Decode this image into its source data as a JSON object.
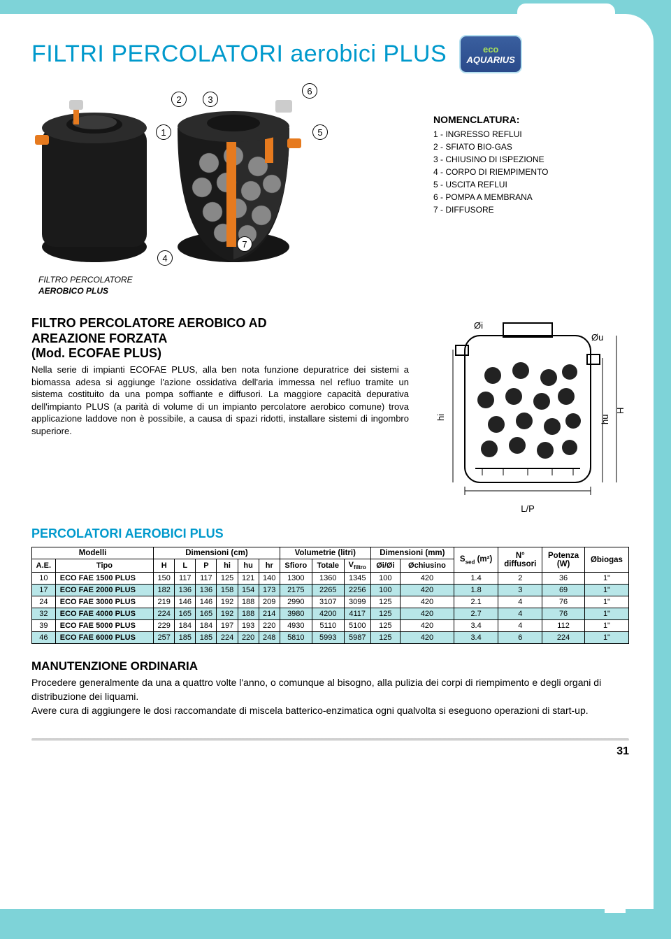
{
  "page": {
    "title": "FILTRI PERCOLATORI aerobici PLUS",
    "logo": {
      "line1": "eco",
      "line2": "AQUARIUS"
    },
    "pageNumber": "31"
  },
  "callouts": {
    "c1": "1",
    "c2": "2",
    "c3": "3",
    "c4": "4",
    "c5": "5",
    "c6": "6",
    "c7": "7"
  },
  "nomenclature": {
    "heading": "NOMENCLATURA:",
    "items": [
      "1 - INGRESSO REFLUI",
      "2 - SFIATO BIO-GAS",
      "3 - CHIUSINO DI ISPEZIONE",
      "4 - CORPO DI RIEMPIMENTO",
      "5 - USCITA REFLUI",
      "6 - POMPA A MEMBRANA",
      "7 - DIFFUSORE"
    ]
  },
  "caption": {
    "line1": "FILTRO PERCOLATORE",
    "line2": "AEROBICO PLUS"
  },
  "section1": {
    "heading_l1": "FILTRO PERCOLATORE AEROBICO AD",
    "heading_l2": "AREAZIONE FORZATA",
    "heading_l3": "(Mod. ECOFAE PLUS)",
    "body": "Nella serie di impianti ECOFAE PLUS, alla ben nota funzione depuratrice dei sistemi a biomassa adesa si aggiunge l'azione ossidativa dell'aria immessa nel refluo tramite un sistema costituito da una pompa soffiante e diffusori. La maggiore capacità depurativa dell'impianto PLUS (a parità di volume di un impianto percolatore aerobico comune) trova applicazione laddove non è possibile, a causa di spazi ridotti, installare sistemi di ingombro superiore."
  },
  "schematic": {
    "labels": {
      "oi": "Øi",
      "ou": "Øu",
      "hi": "hi",
      "hu": "hu",
      "H": "H",
      "LP": "L/P"
    }
  },
  "tableSection": {
    "title": "PERCOLATORI AEROBICI PLUS",
    "groupHeaders": {
      "modelli": "Modelli",
      "dimensioni": "Dimensioni (cm)",
      "volumetrie": "Volumetrie (litri)",
      "dim_mm": "Dimensioni (mm)"
    },
    "columns": [
      "A.E.",
      "Tipo",
      "H",
      "L",
      "P",
      "hi",
      "hu",
      "hr",
      "Sfioro",
      "Totale",
      "V",
      "Øi/Øi",
      "Øchiusino",
      "S",
      "N°",
      "Potenza",
      "Øbiogas"
    ],
    "col_sub": {
      "v": "filtro",
      "s": "sed",
      "s_unit": "(m²)",
      "n2": "diffusori",
      "pot": "(W)"
    },
    "rows": [
      {
        "ae": "10",
        "tipo": "ECO FAE 1500 PLUS",
        "H": "150",
        "L": "117",
        "P": "117",
        "hi": "125",
        "hu": "121",
        "hr": "140",
        "sfioro": "1300",
        "totale": "1360",
        "vfiltro": "1345",
        "oi": "100",
        "ochi": "420",
        "ssed": "1.4",
        "ndiff": "2",
        "pot": "36",
        "obio": "1\""
      },
      {
        "ae": "17",
        "tipo": "ECO FAE 2000 PLUS",
        "H": "182",
        "L": "136",
        "P": "136",
        "hi": "158",
        "hu": "154",
        "hr": "173",
        "sfioro": "2175",
        "totale": "2265",
        "vfiltro": "2256",
        "oi": "100",
        "ochi": "420",
        "ssed": "1.8",
        "ndiff": "3",
        "pot": "69",
        "obio": "1\""
      },
      {
        "ae": "24",
        "tipo": "ECO FAE 3000 PLUS",
        "H": "219",
        "L": "146",
        "P": "146",
        "hi": "192",
        "hu": "188",
        "hr": "209",
        "sfioro": "2990",
        "totale": "3107",
        "vfiltro": "3099",
        "oi": "125",
        "ochi": "420",
        "ssed": "2.1",
        "ndiff": "4",
        "pot": "76",
        "obio": "1\""
      },
      {
        "ae": "32",
        "tipo": "ECO FAE 4000 PLUS",
        "H": "224",
        "L": "165",
        "P": "165",
        "hi": "192",
        "hu": "188",
        "hr": "214",
        "sfioro": "3980",
        "totale": "4200",
        "vfiltro": "4117",
        "oi": "125",
        "ochi": "420",
        "ssed": "2.7",
        "ndiff": "4",
        "pot": "76",
        "obio": "1\""
      },
      {
        "ae": "39",
        "tipo": "ECO FAE 5000 PLUS",
        "H": "229",
        "L": "184",
        "P": "184",
        "hi": "197",
        "hu": "193",
        "hr": "220",
        "sfioro": "4930",
        "totale": "5110",
        "vfiltro": "5100",
        "oi": "125",
        "ochi": "420",
        "ssed": "3.4",
        "ndiff": "4",
        "pot": "112",
        "obio": "1\""
      },
      {
        "ae": "46",
        "tipo": "ECO FAE 6000 PLUS",
        "H": "257",
        "L": "185",
        "P": "185",
        "hi": "224",
        "hu": "220",
        "hr": "248",
        "sfioro": "5810",
        "totale": "5993",
        "vfiltro": "5987",
        "oi": "125",
        "ochi": "420",
        "ssed": "3.4",
        "ndiff": "6",
        "pot": "224",
        "obio": "1\""
      }
    ],
    "stripe_color": "#b8e6e8"
  },
  "maintenance": {
    "heading": "MANUTENZIONE ORDINARIA",
    "p1": "Procedere generalmente da una a quattro volte l'anno, o comunque al bisogno, alla pulizia dei corpi di riempimento e degli organi di distribuzione dei liquami.",
    "p2": "Avere cura di aggiungere le dosi raccomandate di miscela batterico-enzimatica ogni qualvolta si eseguono operazioni di start-up."
  },
  "colors": {
    "bg": "#7ed3d8",
    "accent": "#0099cc",
    "stripe": "#b8e6e8",
    "tank_body": "#1a1a1a",
    "tank_pipe": "#e67a1e"
  }
}
